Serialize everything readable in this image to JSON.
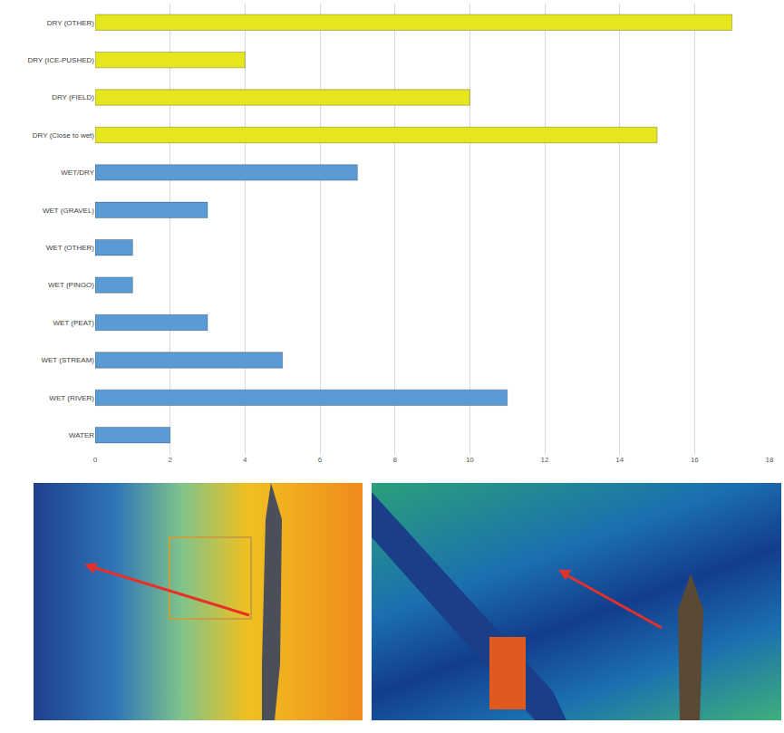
{
  "chart_data": {
    "type": "bar",
    "orientation": "horizontal",
    "categories": [
      "DRY (OTHER)",
      "DRY (ICE-PUSHED)",
      "DRY (FIELD)",
      "DRY (Close to wet)",
      "WET/DRY",
      "WET (GRAVEL)",
      "WET (OTHER)",
      "WET (PINGO)",
      "WET (PEAT)",
      "WET (STREAM)",
      "WET (RIVER)",
      "WATER"
    ],
    "values": [
      17,
      4,
      10,
      15,
      7,
      3,
      1,
      1,
      3,
      5,
      11,
      2
    ],
    "colors": [
      "#e6e61e",
      "#e6e61e",
      "#e6e61e",
      "#e6e61e",
      "#5b9bd5",
      "#5b9bd5",
      "#5b9bd5",
      "#5b9bd5",
      "#5b9bd5",
      "#5b9bd5",
      "#5b9bd5",
      "#5b9bd5"
    ],
    "xlim": [
      0,
      18
    ],
    "xticks": [
      0,
      2,
      4,
      6,
      8,
      10,
      12,
      14,
      16,
      18
    ],
    "grid": true
  }
}
